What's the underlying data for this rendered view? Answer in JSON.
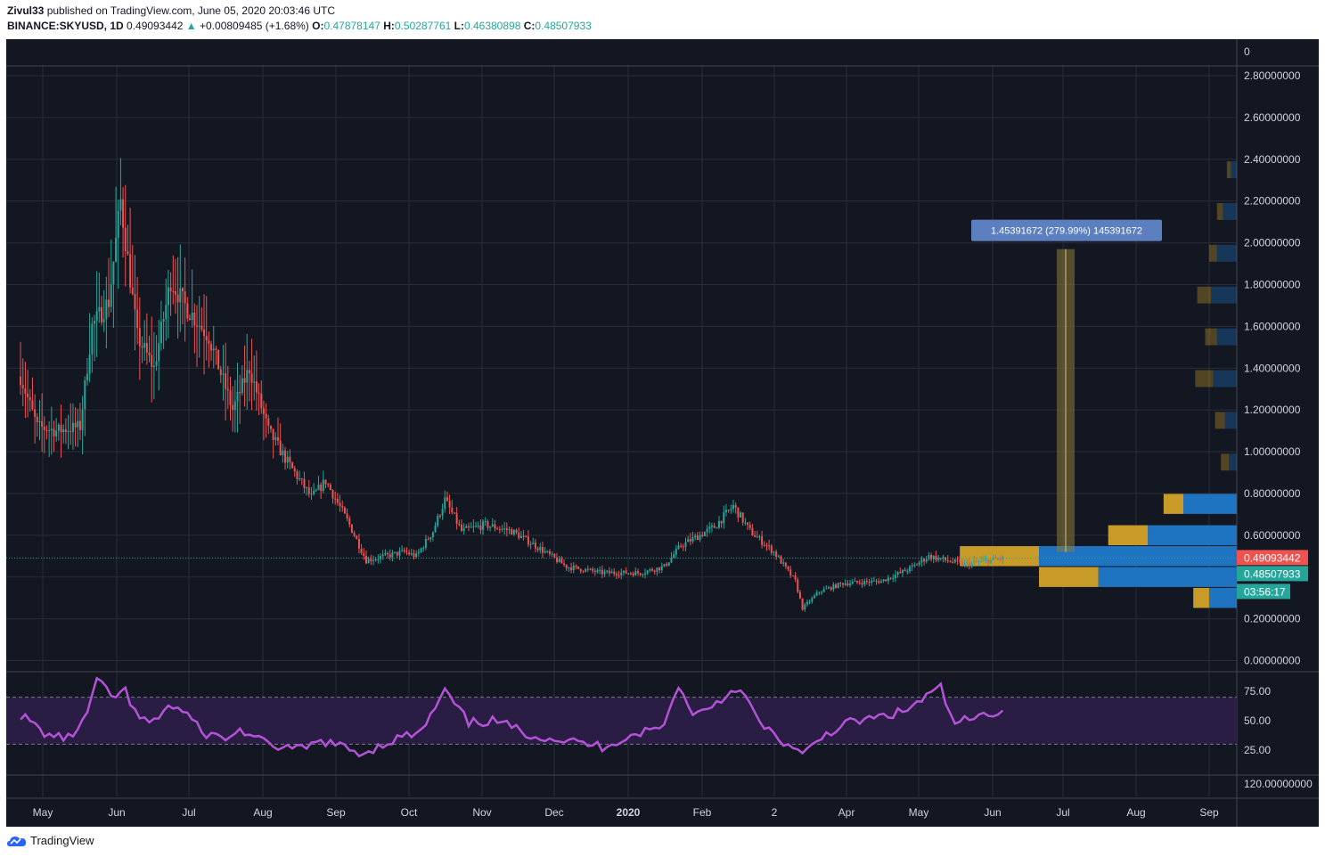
{
  "header": {
    "author": "Zivul33",
    "published_text": "published on TradingView.com, June 05, 2020 20:03:46 UTC",
    "symbol": "BINANCE:SKYUSD, 1D",
    "last": "0.49093442",
    "change": "+0.00809485 (+1.68%)",
    "o_label": "O:",
    "o_value": "0.47878147",
    "h_label": "H:",
    "h_value": "0.50287761",
    "l_label": "L:",
    "l_value": "0.46380898",
    "c_label": "C:",
    "c_value": "0.48507933"
  },
  "footer": {
    "brand": "TradingView"
  },
  "colors": {
    "background": "#131722",
    "up": "#26a69a",
    "down": "#ef5350",
    "rsi_line": "#b452d8",
    "rsi_band": "#2a1d44",
    "vp_up": "#c89b28",
    "vp_down": "#1e74c0",
    "measure_fill": "#8a7a3a",
    "measure_label_bg": "#5b7fbf"
  },
  "chart_data": [
    {
      "type": "candlestick",
      "symbol": "BINANCE:SKYUSD",
      "interval": "1D",
      "x_axis_labels": [
        "May",
        "Jun",
        "Jul",
        "Aug",
        "Sep",
        "Oct",
        "Nov",
        "Dec",
        "2020",
        "Feb",
        "2",
        "Apr",
        "May",
        "Jun",
        "Jul",
        "Aug",
        "Sep"
      ],
      "y_axis_labels": [
        "0",
        "2.80000000",
        "2.60000000",
        "2.40000000",
        "2.20000000",
        "2.00000000",
        "1.80000000",
        "1.60000000",
        "1.40000000",
        "1.20000000",
        "1.00000000",
        "0.80000000",
        "0.60000000",
        "0.20000000",
        "0.00000000"
      ],
      "ylim": [
        0,
        2.8
      ],
      "grid": true,
      "price_line": 0.49093442,
      "price_badges": [
        {
          "text": "0.49093442",
          "kind": "last"
        },
        {
          "text": "0.48507933",
          "kind": "close"
        },
        {
          "text": "03:56:17",
          "kind": "countdown"
        }
      ],
      "close_path": [
        [
          "2019-04-20",
          1.36
        ],
        [
          "2019-04-27",
          1.12
        ],
        [
          "2019-05-05",
          1.1
        ],
        [
          "2019-05-15",
          1.12
        ],
        [
          "2019-05-20",
          1.6
        ],
        [
          "2019-05-27",
          1.72
        ],
        [
          "2019-06-01",
          2.2
        ],
        [
          "2019-06-08",
          1.55
        ],
        [
          "2019-06-15",
          1.4
        ],
        [
          "2019-06-22",
          1.82
        ],
        [
          "2019-06-28",
          1.7
        ],
        [
          "2019-07-08",
          1.55
        ],
        [
          "2019-07-18",
          1.2
        ],
        [
          "2019-07-25",
          1.4
        ],
        [
          "2019-08-02",
          1.1
        ],
        [
          "2019-08-10",
          0.95
        ],
        [
          "2019-08-20",
          0.78
        ],
        [
          "2019-08-26",
          0.86
        ],
        [
          "2019-09-05",
          0.65
        ],
        [
          "2019-09-12",
          0.48
        ],
        [
          "2019-09-20",
          0.5
        ],
        [
          "2019-09-28",
          0.52
        ],
        [
          "2019-10-03",
          0.5
        ],
        [
          "2019-10-10",
          0.62
        ],
        [
          "2019-10-15",
          0.77
        ],
        [
          "2019-10-22",
          0.62
        ],
        [
          "2019-11-01",
          0.65
        ],
        [
          "2019-11-12",
          0.62
        ],
        [
          "2019-11-22",
          0.55
        ],
        [
          "2019-12-05",
          0.45
        ],
        [
          "2019-12-20",
          0.42
        ],
        [
          "2020-01-05",
          0.42
        ],
        [
          "2020-01-15",
          0.45
        ],
        [
          "2020-01-22",
          0.55
        ],
        [
          "2020-02-05",
          0.64
        ],
        [
          "2020-02-13",
          0.74
        ],
        [
          "2020-02-20",
          0.62
        ],
        [
          "2020-03-01",
          0.52
        ],
        [
          "2020-03-10",
          0.38
        ],
        [
          "2020-03-13",
          0.25
        ],
        [
          "2020-03-20",
          0.33
        ],
        [
          "2020-03-30",
          0.37
        ],
        [
          "2020-04-15",
          0.38
        ],
        [
          "2020-04-27",
          0.44
        ],
        [
          "2020-05-05",
          0.5
        ],
        [
          "2020-05-12",
          0.48
        ],
        [
          "2020-05-20",
          0.46
        ],
        [
          "2020-06-05",
          0.49
        ]
      ],
      "measure_tool": {
        "label": "1.45391672 (279.99%) 145391672",
        "from": 0.52,
        "to": 1.97
      },
      "volume_profile": [
        {
          "price": 2.35,
          "up": 0.02,
          "down": 0.03
        },
        {
          "price": 2.15,
          "up": 0.03,
          "down": 0.07
        },
        {
          "price": 1.95,
          "up": 0.04,
          "down": 0.1
        },
        {
          "price": 1.75,
          "up": 0.07,
          "down": 0.13
        },
        {
          "price": 1.55,
          "up": 0.06,
          "down": 0.1
        },
        {
          "price": 1.35,
          "up": 0.09,
          "down": 0.12
        },
        {
          "price": 1.15,
          "up": 0.05,
          "down": 0.06
        },
        {
          "price": 0.95,
          "up": 0.04,
          "down": 0.04
        },
        {
          "price": 0.75,
          "up": 0.1,
          "down": 0.27
        },
        {
          "price": 0.6,
          "up": 0.2,
          "down": 0.45
        },
        {
          "price": 0.5,
          "up": 0.4,
          "down": 1.0
        },
        {
          "price": 0.4,
          "up": 0.3,
          "down": 0.7
        },
        {
          "price": 0.3,
          "up": 0.08,
          "down": 0.14
        }
      ]
    },
    {
      "type": "line",
      "name": "RSI",
      "y_axis_labels": [
        "75.00",
        "50.00",
        "25.00"
      ],
      "ylim": [
        15,
        90
      ],
      "upper_band": 70,
      "lower_band": 30,
      "points": [
        [
          "2019-04-20",
          55
        ],
        [
          "2019-05-01",
          38
        ],
        [
          "2019-05-10",
          35
        ],
        [
          "2019-05-17",
          50
        ],
        [
          "2019-05-22",
          85
        ],
        [
          "2019-05-28",
          70
        ],
        [
          "2019-06-03",
          75
        ],
        [
          "2019-06-08",
          52
        ],
        [
          "2019-06-15",
          48
        ],
        [
          "2019-06-20",
          63
        ],
        [
          "2019-06-28",
          58
        ],
        [
          "2019-07-05",
          40
        ],
        [
          "2019-07-15",
          35
        ],
        [
          "2019-07-22",
          42
        ],
        [
          "2019-08-01",
          30
        ],
        [
          "2019-08-15",
          25
        ],
        [
          "2019-08-25",
          33
        ],
        [
          "2019-09-10",
          22
        ],
        [
          "2019-09-25",
          35
        ],
        [
          "2019-10-05",
          40
        ],
        [
          "2019-10-15",
          75
        ],
        [
          "2019-10-25",
          48
        ],
        [
          "2019-11-05",
          50
        ],
        [
          "2019-11-20",
          38
        ],
        [
          "2019-12-05",
          33
        ],
        [
          "2019-12-20",
          28
        ],
        [
          "2020-01-05",
          40
        ],
        [
          "2020-01-15",
          45
        ],
        [
          "2020-01-20",
          80
        ],
        [
          "2020-01-28",
          55
        ],
        [
          "2020-02-08",
          68
        ],
        [
          "2020-02-15",
          80
        ],
        [
          "2020-02-25",
          45
        ],
        [
          "2020-03-05",
          32
        ],
        [
          "2020-03-13",
          20
        ],
        [
          "2020-03-22",
          38
        ],
        [
          "2020-04-01",
          48
        ],
        [
          "2020-04-12",
          52
        ],
        [
          "2020-04-25",
          58
        ],
        [
          "2020-05-05",
          72
        ],
        [
          "2020-05-10",
          78
        ],
        [
          "2020-05-15",
          48
        ],
        [
          "2020-05-25",
          52
        ],
        [
          "2020-06-05",
          60
        ]
      ]
    }
  ]
}
